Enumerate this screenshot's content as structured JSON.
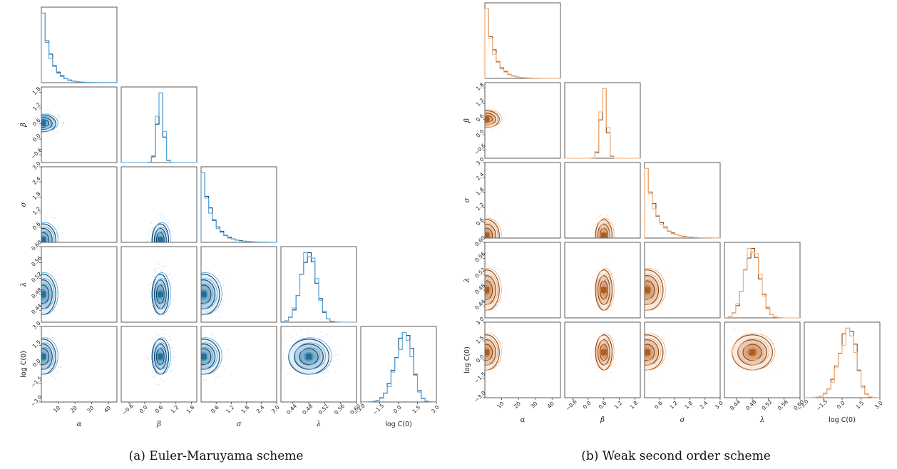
{
  "panels": [
    {
      "caption": "(a) Euler-Maruyama scheme",
      "colors": {
        "light": "#5aa8e0",
        "dark": "#12466e",
        "fill": "#1f6f9a"
      }
    },
    {
      "caption": "(b) Weak second order scheme",
      "colors": {
        "light": "#f4b27a",
        "dark": "#8a4515",
        "fill": "#b15d1a"
      }
    }
  ],
  "params": [
    "α",
    "β",
    "σ",
    "λ",
    "log C(0)"
  ],
  "chart_data": {
    "type": "corner",
    "ranges": [
      [
        0,
        45
      ],
      [
        -0.9,
        2.0
      ],
      [
        0,
        3.0
      ],
      [
        0.41,
        0.6
      ],
      [
        -3.0,
        3.0
      ]
    ],
    "ticks": [
      [
        "10",
        "20",
        "30",
        "40"
      ],
      [
        "−0.6",
        "0.0",
        "0.6",
        "1.2",
        "1.8"
      ],
      [
        "0.6",
        "1.2",
        "1.8",
        "2.4",
        "3.0"
      ],
      [
        "0.44",
        "0.48",
        "0.52",
        "0.56",
        "0.60"
      ],
      [
        "−3.0",
        "−1.5",
        "0.0",
        "1.5",
        "3.0"
      ]
    ],
    "tick_values": [
      [
        10,
        20,
        30,
        40
      ],
      [
        -0.6,
        0.0,
        0.6,
        1.2,
        1.8
      ],
      [
        0.6,
        1.2,
        1.8,
        2.4,
        3.0
      ],
      [
        0.44,
        0.48,
        0.52,
        0.56,
        0.6
      ],
      [
        -3.0,
        -1.5,
        0.0,
        1.5,
        3.0
      ]
    ],
    "modes": [
      1.0,
      0.6,
      0.1,
      0.48,
      0.6
    ],
    "spreads": [
      3.0,
      0.12,
      0.25,
      0.02,
      0.55
    ]
  }
}
